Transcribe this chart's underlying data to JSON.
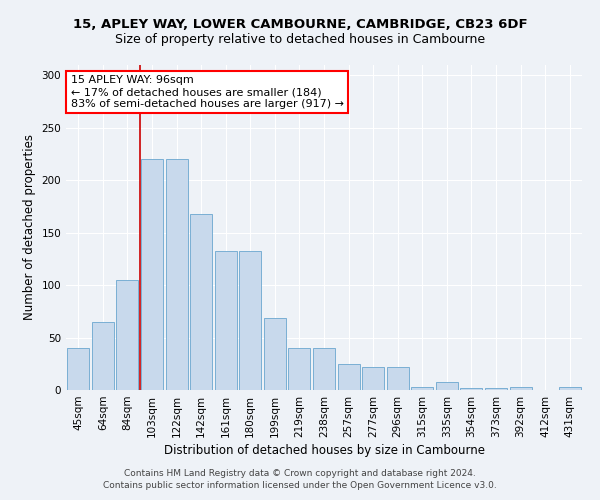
{
  "title_line1": "15, APLEY WAY, LOWER CAMBOURNE, CAMBRIDGE, CB23 6DF",
  "title_line2": "Size of property relative to detached houses in Cambourne",
  "xlabel": "Distribution of detached houses by size in Cambourne",
  "ylabel": "Number of detached properties",
  "categories": [
    "45sqm",
    "64sqm",
    "84sqm",
    "103sqm",
    "122sqm",
    "142sqm",
    "161sqm",
    "180sqm",
    "199sqm",
    "219sqm",
    "238sqm",
    "257sqm",
    "277sqm",
    "296sqm",
    "315sqm",
    "335sqm",
    "354sqm",
    "373sqm",
    "392sqm",
    "412sqm",
    "431sqm"
  ],
  "values": [
    40,
    65,
    105,
    220,
    220,
    168,
    133,
    133,
    69,
    40,
    40,
    25,
    22,
    22,
    3,
    8,
    2,
    2,
    3,
    0,
    3
  ],
  "bar_color": "#c8d9ec",
  "bar_edge_color": "#7aafd4",
  "vline_x": 2.5,
  "annotation_text": "15 APLEY WAY: 96sqm\n← 17% of detached houses are smaller (184)\n83% of semi-detached houses are larger (917) →",
  "annotation_box_color": "white",
  "annotation_box_edge_color": "red",
  "vline_color": "#cc0000",
  "ylim": [
    0,
    310
  ],
  "yticks": [
    0,
    50,
    100,
    150,
    200,
    250,
    300
  ],
  "footer_line1": "Contains HM Land Registry data © Crown copyright and database right 2024.",
  "footer_line2": "Contains public sector information licensed under the Open Government Licence v3.0.",
  "background_color": "#eef2f7",
  "grid_color": "white",
  "title_fontsize": 9.5,
  "subtitle_fontsize": 9,
  "axis_label_fontsize": 8.5,
  "tick_fontsize": 7.5,
  "annotation_fontsize": 8,
  "footer_fontsize": 6.5
}
